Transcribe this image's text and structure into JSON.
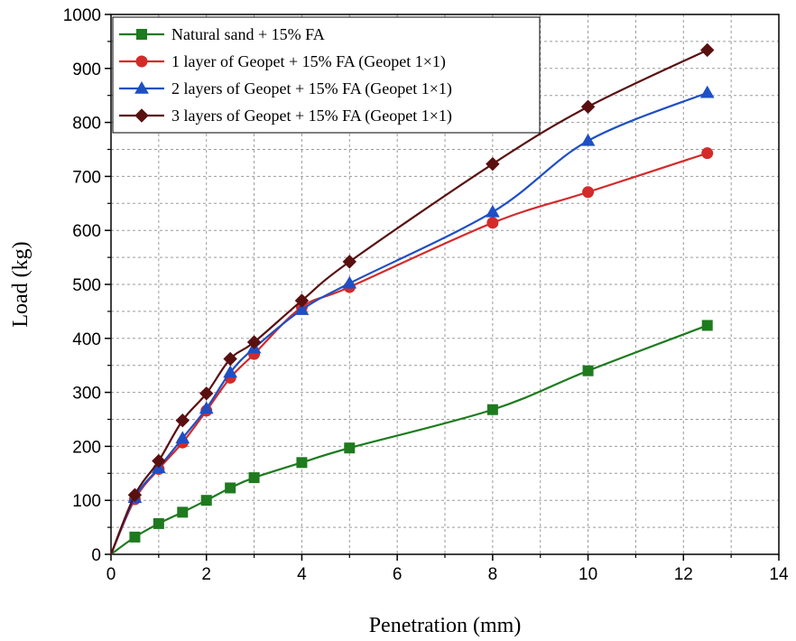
{
  "chart_data": {
    "type": "line",
    "title": "",
    "xlabel": "Penetration (mm)",
    "ylabel": "Load (kg)",
    "xlim": [
      0,
      14
    ],
    "ylim": [
      0,
      1000
    ],
    "xticks": [
      0,
      2,
      4,
      6,
      8,
      10,
      12,
      14
    ],
    "yticks": [
      0,
      100,
      200,
      300,
      400,
      500,
      600,
      700,
      800,
      900,
      1000
    ],
    "grid": true,
    "legend_position": "top-left",
    "series": [
      {
        "name": "Natural sand + 15% FA",
        "color": "#1e7b1e",
        "marker": "square",
        "x": [
          0,
          0.5,
          1,
          1.5,
          2,
          2.5,
          3,
          4,
          5,
          8,
          10,
          12.5
        ],
        "y": [
          0,
          32,
          57,
          78,
          100,
          123,
          142,
          170,
          197,
          268,
          340,
          424
        ]
      },
      {
        "name": "1 layer of Geopet + 15% FA (Geopet 1×1)",
        "color": "#d42a2a",
        "marker": "circle",
        "x": [
          0,
          0.5,
          1,
          1.5,
          2,
          2.5,
          3,
          4,
          5,
          8,
          10,
          12.5
        ],
        "y": [
          0,
          102,
          158,
          207,
          266,
          327,
          371,
          458,
          495,
          614,
          671,
          743
        ]
      },
      {
        "name": "2 layers of Geopet + 15% FA (Geopet 1×1)",
        "color": "#1f4fc4",
        "marker": "triangle",
        "x": [
          0,
          0.5,
          1,
          1.5,
          2,
          2.5,
          3,
          4,
          5,
          8,
          10,
          12.5
        ],
        "y": [
          0,
          105,
          160,
          215,
          270,
          337,
          382,
          453,
          502,
          634,
          766,
          855
        ]
      },
      {
        "name": "3 layers of Geopet + 15% FA (Geopet 1×1)",
        "color": "#5a1010",
        "marker": "diamond",
        "x": [
          0,
          0.5,
          1,
          1.5,
          2,
          2.5,
          3,
          4,
          5,
          8,
          10,
          12.5
        ],
        "y": [
          0,
          110,
          173,
          248,
          298,
          362,
          393,
          470,
          542,
          723,
          829,
          934
        ]
      }
    ]
  }
}
